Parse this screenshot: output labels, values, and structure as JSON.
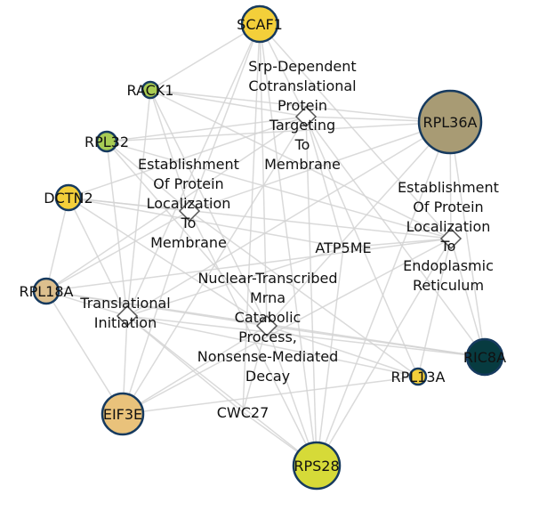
{
  "genes": [
    {
      "id": "SCAF1",
      "label": "SCAF1",
      "color": "#f3cf3a"
    },
    {
      "id": "RACK1",
      "label": "RACK1",
      "color": "#a8cc54"
    },
    {
      "id": "RPL32",
      "label": "RPL32",
      "color": "#a8cc54"
    },
    {
      "id": "DCTN2",
      "label": "DCTN2",
      "color": "#f3cf3a"
    },
    {
      "id": "RPL18A",
      "label": "RPL18A",
      "color": "#dcbf8e"
    },
    {
      "id": "EIF3E",
      "label": "EIF3E",
      "color": "#e9c27b"
    },
    {
      "id": "RPS28",
      "label": "RPS28",
      "color": "#d6da38"
    },
    {
      "id": "RPL13A",
      "label": "RPL13A",
      "color": "#f3cf3a"
    },
    {
      "id": "RIC8A",
      "label": "RIC8A",
      "color": "#073b40"
    },
    {
      "id": "RPL36A",
      "label": "RPL36A",
      "color": "#a89b74"
    },
    {
      "id": "ATP5ME",
      "label": "ATP5ME",
      "color": null
    },
    {
      "id": "CWC27",
      "label": "CWC27",
      "color": null
    }
  ],
  "terms": [
    {
      "id": "srp",
      "label_lines": [
        "Srp-Dependent",
        "Cotranslational",
        "Protein",
        "Targeting",
        "To",
        "Membrane"
      ]
    },
    {
      "id": "est_mem",
      "label_lines": [
        "Establishment",
        "Of Protein",
        "Localization",
        "To",
        "Membrane"
      ]
    },
    {
      "id": "est_er",
      "label_lines": [
        "Establishment",
        "Of Protein",
        "Localization",
        "To",
        "Endoplasmic",
        "Reticulum"
      ]
    },
    {
      "id": "nmd",
      "label_lines": [
        "Nuclear-Transcribed",
        "Mrna",
        "Catabolic",
        "Process,",
        "Nonsense-Mediated",
        "Decay"
      ]
    },
    {
      "id": "transl",
      "label_lines": [
        "Translational",
        "Initiation"
      ]
    }
  ]
}
